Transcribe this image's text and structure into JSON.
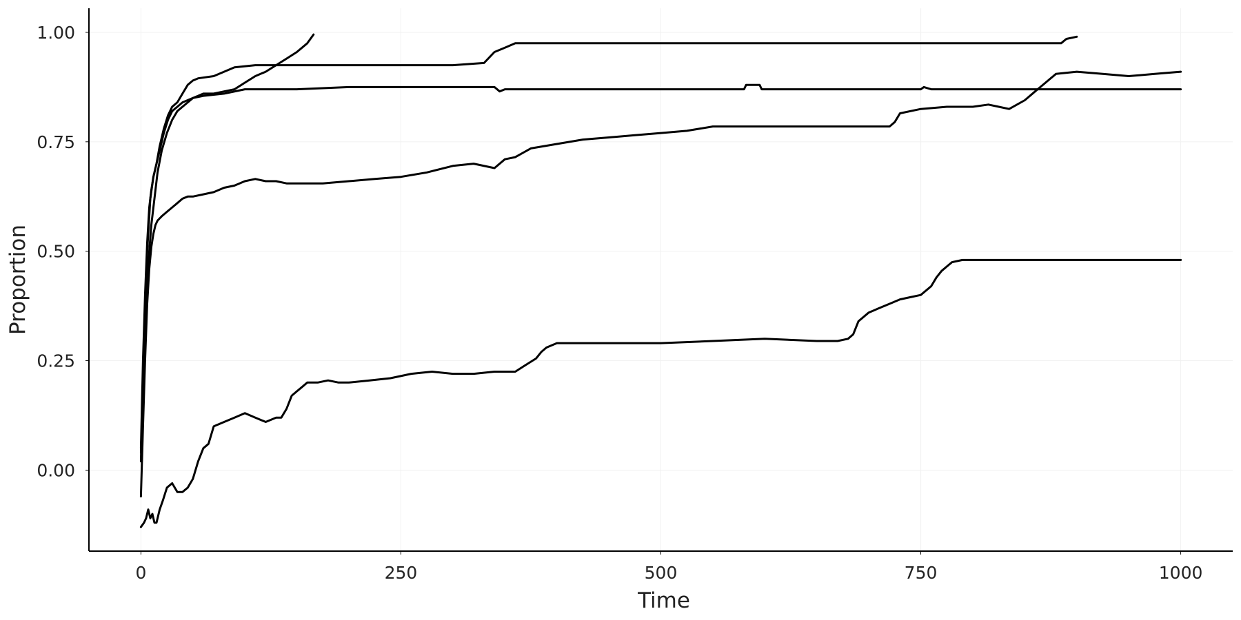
{
  "chart_data": {
    "type": "line",
    "title": "",
    "xlabel": "Time",
    "ylabel": "Proportion",
    "xlim": [
      -50,
      1050
    ],
    "ylim": [
      -0.185,
      1.055
    ],
    "x_ticks": [
      0,
      250,
      500,
      750,
      1000
    ],
    "x_tick_labels": [
      "0",
      "250",
      "500",
      "750",
      "1000"
    ],
    "y_ticks": [
      0.0,
      0.25,
      0.5,
      0.75,
      1.0
    ],
    "y_tick_labels": [
      "0.00",
      "0.25",
      "0.50",
      "0.75",
      "1.00"
    ],
    "grid": true,
    "legend": "none",
    "line_color": "#000000",
    "series": [
      {
        "x": [
          0,
          2,
          4,
          6,
          8,
          10,
          13,
          16,
          20,
          25,
          30,
          35,
          40,
          45,
          50,
          55,
          60,
          70,
          80,
          90,
          100,
          110,
          120,
          130,
          140,
          150,
          160,
          166
        ],
        "y": [
          0.04,
          0.18,
          0.32,
          0.42,
          0.5,
          0.56,
          0.62,
          0.68,
          0.73,
          0.77,
          0.8,
          0.82,
          0.83,
          0.84,
          0.85,
          0.855,
          0.86,
          0.86,
          0.865,
          0.87,
          0.885,
          0.9,
          0.91,
          0.925,
          0.94,
          0.955,
          0.975,
          0.995
        ]
      },
      {
        "x": [
          0,
          2,
          4,
          6,
          8,
          10,
          12,
          15,
          18,
          22,
          26,
          30,
          35,
          40,
          45,
          50,
          55,
          70,
          90,
          110,
          150,
          200,
          250,
          300,
          330,
          340,
          350,
          360,
          400,
          500,
          600,
          700,
          800,
          885,
          890,
          900
        ],
        "y": [
          0.05,
          0.25,
          0.4,
          0.52,
          0.6,
          0.64,
          0.67,
          0.7,
          0.74,
          0.78,
          0.81,
          0.83,
          0.84,
          0.86,
          0.88,
          0.89,
          0.895,
          0.9,
          0.92,
          0.925,
          0.925,
          0.925,
          0.925,
          0.925,
          0.93,
          0.955,
          0.965,
          0.975,
          0.975,
          0.975,
          0.975,
          0.975,
          0.975,
          0.975,
          0.985,
          0.99
        ]
      },
      {
        "x": [
          0,
          3,
          6,
          9,
          12,
          15,
          18,
          22,
          26,
          30,
          35,
          40,
          50,
          60,
          80,
          100,
          150,
          200,
          275,
          300,
          340,
          345,
          350,
          400,
          500,
          580,
          582,
          595,
          597,
          650,
          750,
          753,
          760,
          800,
          900,
          1000
        ],
        "y": [
          0.02,
          0.3,
          0.5,
          0.62,
          0.67,
          0.7,
          0.73,
          0.77,
          0.8,
          0.82,
          0.83,
          0.84,
          0.85,
          0.855,
          0.86,
          0.87,
          0.87,
          0.875,
          0.875,
          0.875,
          0.875,
          0.865,
          0.87,
          0.87,
          0.87,
          0.87,
          0.88,
          0.88,
          0.87,
          0.87,
          0.87,
          0.875,
          0.87,
          0.87,
          0.87,
          0.87
        ]
      },
      {
        "x": [
          0,
          2,
          4,
          6,
          8,
          10,
          12,
          14,
          16,
          18,
          20,
          25,
          30,
          35,
          40,
          45,
          50,
          60,
          70,
          80,
          90,
          100,
          110,
          120,
          130,
          140,
          150,
          175,
          200,
          225,
          250,
          275,
          300,
          320,
          340,
          350,
          360,
          375,
          400,
          425,
          450,
          475,
          500,
          525,
          550,
          600,
          650,
          700,
          710,
          720,
          725,
          730,
          750,
          775,
          800,
          815,
          825,
          835,
          850,
          860,
          870,
          880,
          900,
          925,
          950,
          975,
          1000
        ],
        "y": [
          -0.06,
          0.1,
          0.25,
          0.38,
          0.46,
          0.51,
          0.54,
          0.56,
          0.57,
          0.575,
          0.58,
          0.59,
          0.6,
          0.61,
          0.62,
          0.625,
          0.625,
          0.63,
          0.635,
          0.645,
          0.65,
          0.66,
          0.665,
          0.66,
          0.66,
          0.655,
          0.655,
          0.655,
          0.66,
          0.665,
          0.67,
          0.68,
          0.695,
          0.7,
          0.69,
          0.71,
          0.715,
          0.735,
          0.745,
          0.755,
          0.76,
          0.765,
          0.77,
          0.775,
          0.785,
          0.785,
          0.785,
          0.785,
          0.785,
          0.785,
          0.795,
          0.815,
          0.825,
          0.83,
          0.83,
          0.835,
          0.83,
          0.825,
          0.845,
          0.865,
          0.885,
          0.905,
          0.91,
          0.905,
          0.9,
          0.905,
          0.91
        ]
      },
      {
        "x": [
          0,
          3,
          5,
          7,
          9,
          11,
          13,
          15,
          18,
          21,
          25,
          30,
          35,
          40,
          45,
          50,
          55,
          60,
          65,
          70,
          80,
          90,
          100,
          110,
          120,
          130,
          135,
          140,
          145,
          150,
          155,
          160,
          170,
          180,
          190,
          200,
          220,
          240,
          260,
          280,
          300,
          320,
          340,
          360,
          370,
          380,
          385,
          390,
          400,
          450,
          500,
          550,
          600,
          650,
          670,
          680,
          685,
          690,
          700,
          710,
          720,
          730,
          740,
          750,
          760,
          765,
          770,
          775,
          780,
          790,
          800,
          850,
          900,
          950,
          1000
        ],
        "y": [
          -0.13,
          -0.12,
          -0.11,
          -0.09,
          -0.11,
          -0.1,
          -0.12,
          -0.12,
          -0.09,
          -0.07,
          -0.04,
          -0.03,
          -0.05,
          -0.05,
          -0.04,
          -0.02,
          0.02,
          0.05,
          0.06,
          0.1,
          0.11,
          0.12,
          0.13,
          0.12,
          0.11,
          0.12,
          0.12,
          0.14,
          0.17,
          0.18,
          0.19,
          0.2,
          0.2,
          0.205,
          0.2,
          0.2,
          0.205,
          0.21,
          0.22,
          0.225,
          0.22,
          0.22,
          0.225,
          0.225,
          0.24,
          0.255,
          0.27,
          0.28,
          0.29,
          0.29,
          0.29,
          0.295,
          0.3,
          0.295,
          0.295,
          0.3,
          0.31,
          0.34,
          0.36,
          0.37,
          0.38,
          0.39,
          0.395,
          0.4,
          0.42,
          0.44,
          0.455,
          0.465,
          0.475,
          0.48,
          0.48,
          0.48,
          0.48,
          0.48,
          0.48
        ]
      }
    ]
  }
}
